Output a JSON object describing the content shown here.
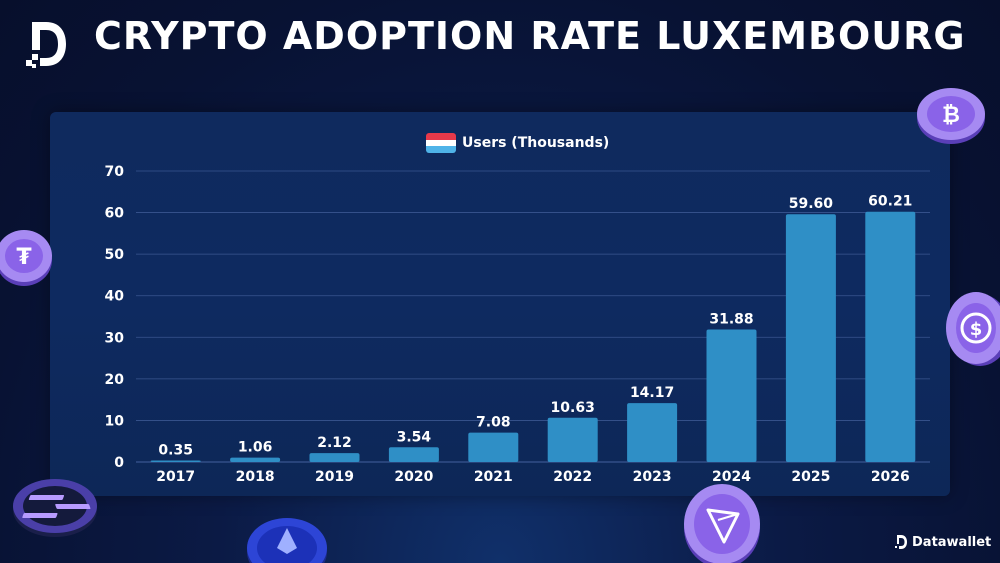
{
  "header": {
    "title": "CRYPTO ADOPTION RATE LUXEMBOURG"
  },
  "brand": {
    "name": "Datawallet"
  },
  "colors": {
    "bar": "#2f8fc6",
    "gridline": "#3a5690",
    "flag_red": "#e8394a",
    "flag_white": "#ffffff",
    "flag_blue": "#4fb3e8",
    "coin_purple": "#8a63e8"
  },
  "decor": {
    "coins": [
      "bitcoin-icon",
      "tether-icon",
      "usd-coin-icon",
      "solana-icon",
      "ethereum-icon",
      "tron-icon"
    ]
  },
  "chart_data": {
    "type": "bar",
    "legend": {
      "label": "Users (Thousands)",
      "position": "top-center"
    },
    "categories": [
      "2017",
      "2018",
      "2019",
      "2020",
      "2021",
      "2022",
      "2023",
      "2024",
      "2025",
      "2026"
    ],
    "series": [
      {
        "name": "Users (Thousands)",
        "values": [
          0.35,
          1.06,
          2.12,
          3.54,
          7.08,
          10.63,
          14.17,
          31.88,
          59.6,
          60.21
        ]
      }
    ],
    "value_labels": [
      "0.35",
      "1.06",
      "2.12",
      "3.54",
      "7.08",
      "10.63",
      "14.17",
      "31.88",
      "59.60",
      "60.21"
    ],
    "yticks": [
      "0",
      "10",
      "20",
      "30",
      "40",
      "50",
      "60",
      "70"
    ],
    "ylim": [
      0,
      70
    ],
    "grid": true,
    "xlabel": "",
    "ylabel": ""
  }
}
